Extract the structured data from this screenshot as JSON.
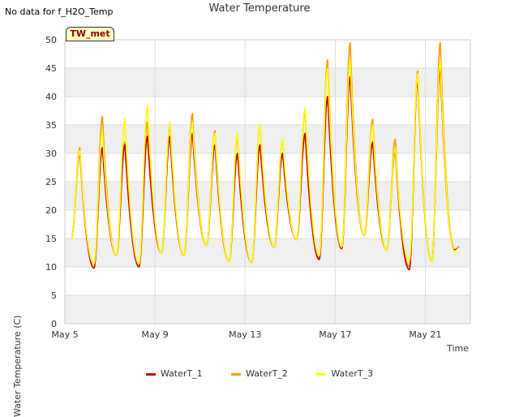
{
  "header": {
    "no_data_note": "No data for f_H2O_Temp",
    "title": "Water Temperature",
    "tag_label": "TW_met"
  },
  "chart_data": {
    "type": "line",
    "title": "Water Temperature",
    "xlabel": "Time",
    "ylabel": "Water Temperature (C)",
    "ylim": [
      0,
      50
    ],
    "yticks": [
      0,
      5,
      10,
      15,
      20,
      25,
      30,
      35,
      40,
      45,
      50
    ],
    "xlim": [
      "2024-05-05",
      "2024-05-23"
    ],
    "xticks": [
      "2024-05-05",
      "2024-05-09",
      "2024-05-13",
      "2024-05-17",
      "2024-05-21"
    ],
    "xtick_labels": [
      "May 5",
      "May 9",
      "May 13",
      "May 17",
      "May 21"
    ],
    "grid": true,
    "legend_placement": "bottom",
    "daily": [
      {
        "date": "2024-05-05",
        "WaterT_1": {
          "min": 15.0,
          "max": 30.0
        },
        "WaterT_2": {
          "min": 15.0,
          "max": 31.0
        },
        "WaterT_3": {
          "min": 15.0,
          "max": 30.5
        }
      },
      {
        "date": "2024-05-06",
        "WaterT_1": {
          "min": 9.8,
          "max": 31.0
        },
        "WaterT_2": {
          "min": 9.8,
          "max": 36.5
        },
        "WaterT_3": {
          "min": 10.5,
          "max": 34.0
        }
      },
      {
        "date": "2024-05-07",
        "WaterT_1": {
          "min": 12.0,
          "max": 31.5
        },
        "WaterT_2": {
          "min": 12.0,
          "max": 32.0
        },
        "WaterT_3": {
          "min": 12.0,
          "max": 36.0
        }
      },
      {
        "date": "2024-05-08",
        "WaterT_1": {
          "min": 10.0,
          "max": 33.0
        },
        "WaterT_2": {
          "min": 10.2,
          "max": 35.5
        },
        "WaterT_3": {
          "min": 10.5,
          "max": 38.5
        }
      },
      {
        "date": "2024-05-09",
        "WaterT_1": {
          "min": 12.5,
          "max": 33.0
        },
        "WaterT_2": {
          "min": 12.5,
          "max": 35.0
        },
        "WaterT_3": {
          "min": 12.5,
          "max": 35.5
        }
      },
      {
        "date": "2024-05-10",
        "WaterT_1": {
          "min": 12.0,
          "max": 33.5
        },
        "WaterT_2": {
          "min": 12.0,
          "max": 37.0
        },
        "WaterT_3": {
          "min": 12.0,
          "max": 35.5
        }
      },
      {
        "date": "2024-05-11",
        "WaterT_1": {
          "min": 13.8,
          "max": 31.5
        },
        "WaterT_2": {
          "min": 13.8,
          "max": 34.0
        },
        "WaterT_3": {
          "min": 13.8,
          "max": 33.5
        }
      },
      {
        "date": "2024-05-12",
        "WaterT_1": {
          "min": 11.0,
          "max": 30.0
        },
        "WaterT_2": {
          "min": 11.0,
          "max": 33.0
        },
        "WaterT_3": {
          "min": 11.0,
          "max": 33.5
        }
      },
      {
        "date": "2024-05-13",
        "WaterT_1": {
          "min": 10.8,
          "max": 31.5
        },
        "WaterT_2": {
          "min": 10.8,
          "max": 35.0
        },
        "WaterT_3": {
          "min": 10.8,
          "max": 35.0
        }
      },
      {
        "date": "2024-05-14",
        "WaterT_1": {
          "min": 13.5,
          "max": 30.0
        },
        "WaterT_2": {
          "min": 13.5,
          "max": 32.5
        },
        "WaterT_3": {
          "min": 13.5,
          "max": 32.5
        }
      },
      {
        "date": "2024-05-15",
        "WaterT_1": {
          "min": 14.8,
          "max": 33.5
        },
        "WaterT_2": {
          "min": 14.8,
          "max": 37.5
        },
        "WaterT_3": {
          "min": 14.8,
          "max": 38.0
        }
      },
      {
        "date": "2024-05-16",
        "WaterT_1": {
          "min": 11.3,
          "max": 40.0
        },
        "WaterT_2": {
          "min": 11.5,
          "max": 46.5
        },
        "WaterT_3": {
          "min": 12.0,
          "max": 45.0
        }
      },
      {
        "date": "2024-05-17",
        "WaterT_1": {
          "min": 13.2,
          "max": 43.5
        },
        "WaterT_2": {
          "min": 13.3,
          "max": 49.5
        },
        "WaterT_3": {
          "min": 13.5,
          "max": 46.5
        }
      },
      {
        "date": "2024-05-18",
        "WaterT_1": {
          "min": 15.5,
          "max": 32.0
        },
        "WaterT_2": {
          "min": 15.5,
          "max": 36.0
        },
        "WaterT_3": {
          "min": 15.5,
          "max": 35.0
        }
      },
      {
        "date": "2024-05-19",
        "WaterT_1": {
          "min": 13.0,
          "max": 30.5
        },
        "WaterT_2": {
          "min": 13.0,
          "max": 32.5
        },
        "WaterT_3": {
          "min": 13.0,
          "max": 31.0
        }
      },
      {
        "date": "2024-05-20",
        "WaterT_1": {
          "min": 9.5,
          "max": 43.0
        },
        "WaterT_2": {
          "min": 10.0,
          "max": 44.5
        },
        "WaterT_3": {
          "min": 11.0,
          "max": 44.0
        }
      },
      {
        "date": "2024-05-21",
        "WaterT_1": {
          "min": 11.0,
          "max": 45.0
        },
        "WaterT_2": {
          "min": 11.0,
          "max": 49.5
        },
        "WaterT_3": {
          "min": 11.0,
          "max": 46.5
        }
      },
      {
        "date": "2024-05-22",
        "WaterT_1": {
          "min": 13.0,
          "max": 14.0
        },
        "WaterT_2": {
          "min": 13.0,
          "max": 14.0
        },
        "WaterT_3": {
          "min": 12.8,
          "max": 14.0
        }
      }
    ],
    "series": [
      {
        "name": "WaterT_1",
        "color": "#cc0000"
      },
      {
        "name": "WaterT_2",
        "color": "#ff9900"
      },
      {
        "name": "WaterT_3",
        "color": "#ffff00"
      }
    ],
    "start_value": 15.8,
    "end_date": "2024-05-22T12:00"
  }
}
